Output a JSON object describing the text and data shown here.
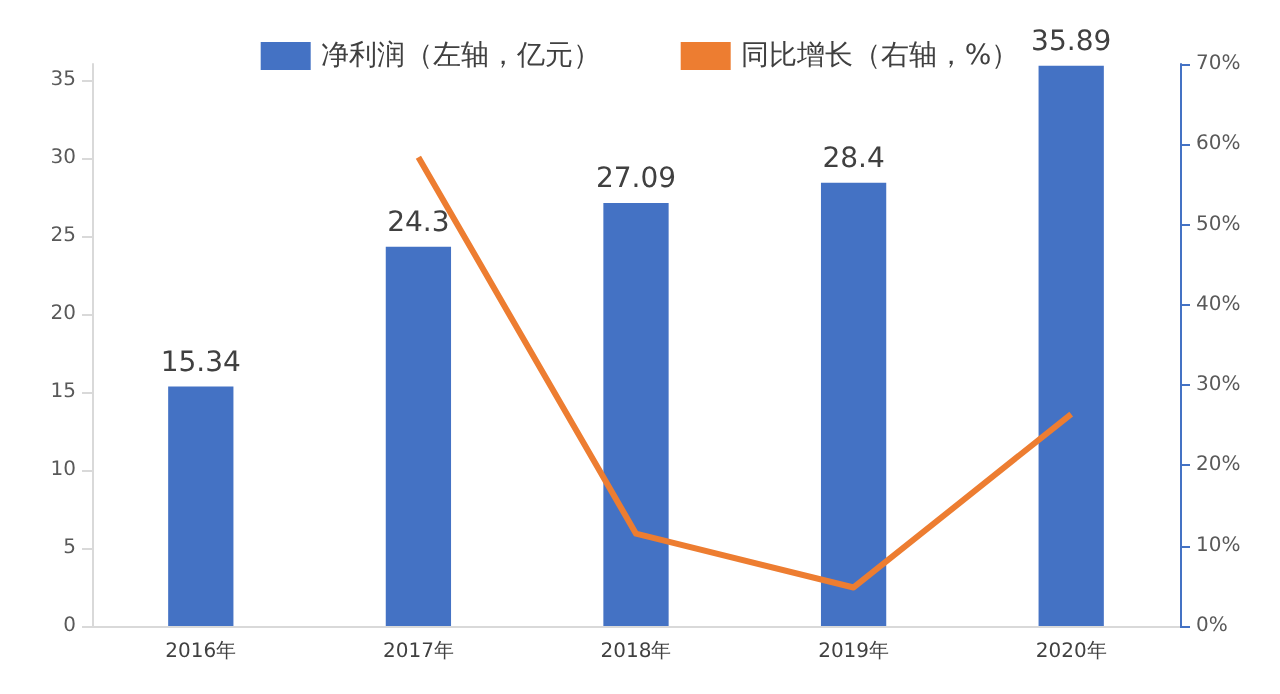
{
  "chart_data": {
    "type": "bar",
    "categories": [
      "2016年",
      "2017年",
      "2018年",
      "2019年",
      "2020年"
    ],
    "series": [
      {
        "name": "净利润（左轴，亿元）",
        "color": "#4472c4",
        "values": [
          15.34,
          24.3,
          27.09,
          28.4,
          35.89
        ],
        "value_labels": [
          "15.34",
          "24.3",
          "27.09",
          "28.4",
          "35.89"
        ]
      },
      {
        "name": "同比增长（右轴，%）",
        "type": "line",
        "axis": "y2",
        "color": "#ed7d31",
        "values": [
          null,
          58.4,
          11.5,
          4.8,
          26.4
        ]
      }
    ],
    "ylim": [
      0,
      36
    ],
    "yticks": [
      0,
      5,
      10,
      15,
      20,
      25,
      30,
      35
    ],
    "y2lim": [
      0,
      70
    ],
    "y2ticks": [
      {
        "value": 0,
        "label": "0%"
      },
      {
        "value": 10,
        "label": "10%"
      },
      {
        "value": 20,
        "label": "20%"
      },
      {
        "value": 30,
        "label": "30%"
      },
      {
        "value": 40,
        "label": "40%"
      },
      {
        "value": 50,
        "label": "50%"
      },
      {
        "value": 60,
        "label": "60%"
      },
      {
        "value": 70,
        "label": "70%"
      }
    ],
    "legend": "top",
    "grid": false,
    "marker": "none"
  }
}
